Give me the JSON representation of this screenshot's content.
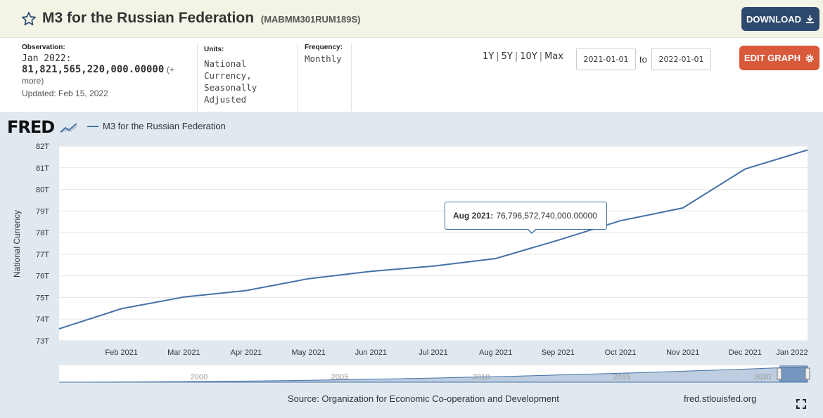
{
  "header": {
    "title": "M3 for the Russian Federation",
    "series_id": "(MABMM301RUM189S)",
    "download_label": "DOWNLOAD",
    "star_icon": "star-outline-icon",
    "download_icon": "download-icon"
  },
  "info": {
    "observation_label": "Observation:",
    "observation_period": "Jan 2022:",
    "observation_value": "81,821,565,220,000.00000",
    "more_label": "(+ more)",
    "updated": "Updated: Feb 15, 2022",
    "units_label": "Units:",
    "units_value": "National Currency, Seasonally Adjusted",
    "frequency_label": "Frequency:",
    "frequency_value": "Monthly"
  },
  "controls": {
    "ranges": [
      "1Y",
      "5Y",
      "10Y",
      "Max"
    ],
    "start_date": "2021-01-01",
    "to_label": "to",
    "end_date": "2022-01-01",
    "edit_label": "EDIT GRAPH",
    "edit_icon": "gear-icon"
  },
  "logo": {
    "text": "FRED",
    "icon": "fred-chart-icon"
  },
  "tooltip": {
    "label": "Aug 2021:",
    "value": "76,796,572,740,000.00000"
  },
  "footer": {
    "source": "Source: Organization for Economic Co-operation and Development",
    "url": "fred.stlouisfed.org",
    "fullscreen_icon": "fullscreen-icon"
  },
  "chart_data": {
    "type": "line",
    "title": "",
    "xlabel": "",
    "ylabel": "National Currency",
    "legend": "top-left",
    "grid": true,
    "series": [
      {
        "name": "M3 for the Russian Federation",
        "color": "#4572a7",
        "x": [
          "2021-01-01",
          "2021-02-01",
          "2021-03-01",
          "2021-04-01",
          "2021-05-01",
          "2021-06-01",
          "2021-07-01",
          "2021-08-01",
          "2021-09-01",
          "2021-10-01",
          "2021-11-01",
          "2021-12-01",
          "2022-01-01"
        ],
        "values": [
          73.55,
          74.48,
          75.02,
          75.32,
          75.87,
          76.21,
          76.45,
          76.8,
          77.65,
          78.55,
          79.14,
          80.94,
          81.82
        ]
      }
    ],
    "x_tick_labels": [
      "Feb 2021",
      "Mar 2021",
      "Apr 2021",
      "May 2021",
      "Jun 2021",
      "Jul 2021",
      "Aug 2021",
      "Sep 2021",
      "Oct 2021",
      "Nov 2021",
      "Dec 2021",
      "Jan 2022"
    ],
    "y_ticks": [
      73,
      74,
      75,
      76,
      77,
      78,
      79,
      80,
      81,
      82
    ],
    "y_tick_labels": [
      "73T",
      "74T",
      "75T",
      "76T",
      "77T",
      "78T",
      "79T",
      "80T",
      "81T",
      "82T"
    ],
    "ylim": [
      73,
      82
    ],
    "navigator_labels": [
      "2000",
      "2005",
      "2010",
      "2015",
      "2020"
    ]
  }
}
